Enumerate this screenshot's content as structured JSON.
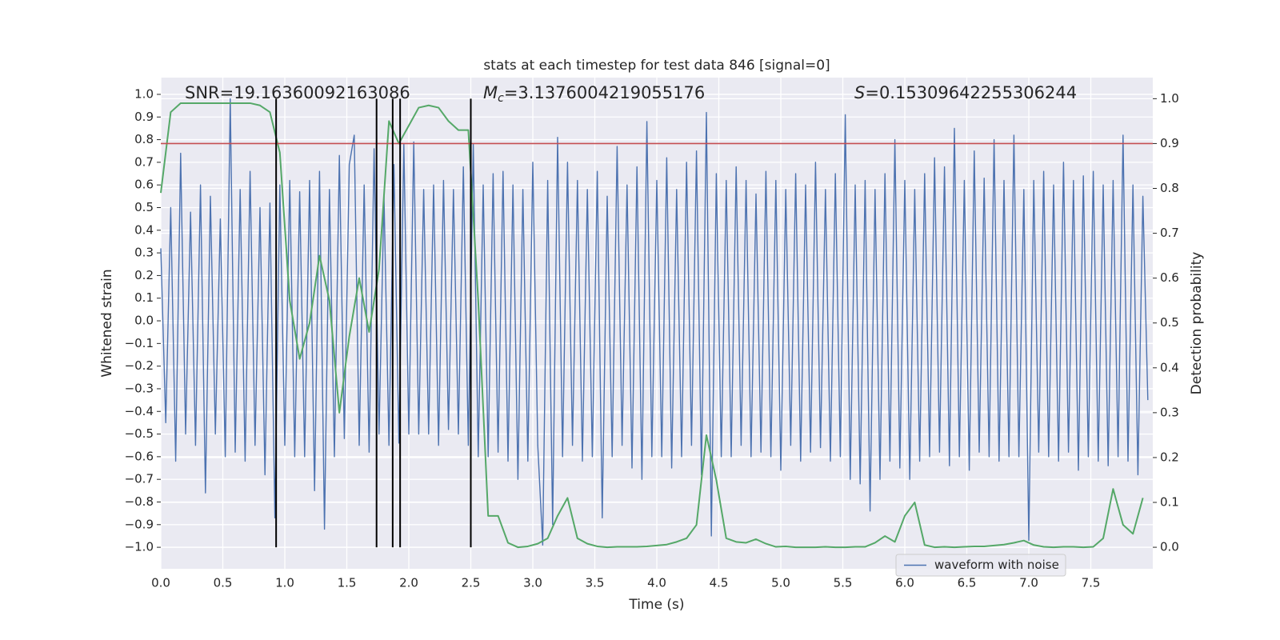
{
  "chart_data": {
    "type": "line",
    "title": "stats at each timestep for test data 846 [signal=0]",
    "xlabel": "Time (s)",
    "ylabel": "Whitened strain",
    "y2label": "Detection probability",
    "xlim": [
      0,
      8
    ],
    "ylim": [
      -1.095,
      1.074
    ],
    "y2lim": [
      -0.048,
      1.047
    ],
    "grid": true,
    "legend": "lower right",
    "xticks": [
      {
        "value": 0,
        "label": "0.0"
      },
      0.5,
      {
        "value": 1,
        "label": "1.0"
      },
      1.5,
      {
        "value": 2,
        "label": "2.0"
      },
      2.5,
      {
        "value": 3,
        "label": "3.0"
      },
      3.5,
      {
        "value": 4,
        "label": "4.0"
      },
      4.5,
      {
        "value": 5,
        "label": "5.0"
      },
      5.5,
      {
        "value": 6,
        "label": "6.0"
      },
      6.5,
      {
        "value": 7,
        "label": "7.0"
      },
      7.5
    ],
    "yticks": [
      {
        "value": -1,
        "label": "−1.0"
      },
      {
        "value": -0.9,
        "label": "−0.9"
      },
      {
        "value": -0.8,
        "label": "−0.8"
      },
      {
        "value": -0.7,
        "label": "−0.7"
      },
      {
        "value": -0.6,
        "label": "−0.6"
      },
      {
        "value": -0.5,
        "label": "−0.5"
      },
      {
        "value": -0.4,
        "label": "−0.4"
      },
      {
        "value": -0.3,
        "label": "−0.3"
      },
      {
        "value": -0.2,
        "label": "−0.2"
      },
      {
        "value": -0.1,
        "label": "−0.1"
      },
      {
        "value": 0,
        "label": "0.0"
      },
      0.1,
      0.2,
      0.3,
      0.4,
      0.5,
      0.6,
      0.7,
      0.8,
      0.9,
      {
        "value": 1,
        "label": "1.0"
      }
    ],
    "y2ticks": [
      {
        "value": 0,
        "label": "0.0"
      },
      0.1,
      0.2,
      0.3,
      0.4,
      0.5,
      0.6,
      0.7,
      0.8,
      0.9,
      {
        "value": 1,
        "label": "1.0"
      }
    ],
    "series": [
      {
        "name": "waveform with noise",
        "color": "#4c72b0",
        "x": [
          0,
          0.04,
          0.08,
          0.12,
          0.16,
          0.2,
          0.24,
          0.28,
          0.32,
          0.36,
          0.4,
          0.44,
          0.48,
          0.52,
          0.56,
          0.6,
          0.64,
          0.68,
          0.72,
          0.76,
          0.8,
          0.84,
          0.88,
          0.92,
          0.96,
          1,
          1.04,
          1.08,
          1.12,
          1.16,
          1.2,
          1.24,
          1.28,
          1.32,
          1.36,
          1.4,
          1.44,
          1.48,
          1.52,
          1.56,
          1.6,
          1.64,
          1.68,
          1.72,
          1.76,
          1.8,
          1.84,
          1.88,
          1.92,
          1.96,
          2,
          2.04,
          2.08,
          2.12,
          2.16,
          2.2,
          2.24,
          2.28,
          2.32,
          2.36,
          2.4,
          2.44,
          2.48,
          2.52,
          2.56,
          2.6,
          2.64,
          2.68,
          2.72,
          2.76,
          2.8,
          2.84,
          2.88,
          2.92,
          2.96,
          3,
          3.04,
          3.08,
          3.12,
          3.16,
          3.2,
          3.24,
          3.28,
          3.32,
          3.36,
          3.4,
          3.44,
          3.48,
          3.52,
          3.56,
          3.6,
          3.64,
          3.68,
          3.72,
          3.76,
          3.8,
          3.84,
          3.88,
          3.92,
          3.96,
          4,
          4.04,
          4.08,
          4.12,
          4.16,
          4.2,
          4.24,
          4.28,
          4.32,
          4.36,
          4.4,
          4.44,
          4.48,
          4.52,
          4.56,
          4.6,
          4.64,
          4.68,
          4.72,
          4.76,
          4.8,
          4.84,
          4.88,
          4.92,
          4.96,
          5,
          5.04,
          5.08,
          5.12,
          5.16,
          5.2,
          5.24,
          5.28,
          5.32,
          5.36,
          5.4,
          5.44,
          5.48,
          5.52,
          5.56,
          5.6,
          5.64,
          5.68,
          5.72,
          5.76,
          5.8,
          5.84,
          5.88,
          5.92,
          5.96,
          6,
          6.04,
          6.08,
          6.12,
          6.16,
          6.2,
          6.24,
          6.28,
          6.32,
          6.36,
          6.4,
          6.44,
          6.48,
          6.52,
          6.56,
          6.6,
          6.64,
          6.68,
          6.72,
          6.76,
          6.8,
          6.84,
          6.88,
          6.92,
          6.96,
          7,
          7.04,
          7.08,
          7.12,
          7.16,
          7.2,
          7.24,
          7.28,
          7.32,
          7.36,
          7.4,
          7.44,
          7.48,
          7.52,
          7.56,
          7.6,
          7.64,
          7.68,
          7.72,
          7.76,
          7.8,
          7.84,
          7.88,
          7.92,
          7.96
        ],
        "values": [
          0.32,
          -0.45,
          0.5,
          -0.62,
          0.74,
          -0.5,
          0.48,
          -0.55,
          0.6,
          -0.76,
          0.55,
          -0.5,
          0.45,
          -0.6,
          0.98,
          -0.58,
          0.58,
          -0.62,
          0.66,
          -0.55,
          0.5,
          -0.68,
          0.52,
          -0.87,
          0.6,
          -0.55,
          0.62,
          -0.6,
          0.57,
          -0.6,
          0.62,
          -0.75,
          0.66,
          -0.92,
          0.58,
          -0.6,
          0.73,
          -0.52,
          0.69,
          0.82,
          -0.55,
          0.6,
          -0.58,
          0.76,
          -0.5,
          0.55,
          -0.55,
          0.69,
          -0.54,
          0.78,
          -0.5,
          0.79,
          -0.5,
          0.58,
          -0.5,
          0.6,
          -0.55,
          0.62,
          -0.48,
          0.58,
          -0.5,
          0.68,
          -0.55,
          0.78,
          -0.6,
          0.6,
          -0.6,
          0.65,
          -0.58,
          0.66,
          -0.62,
          0.6,
          -0.7,
          0.58,
          -0.62,
          0.7,
          -0.55,
          -0.99,
          0.62,
          -0.9,
          0.81,
          -0.6,
          0.7,
          -0.55,
          0.62,
          -0.62,
          0.58,
          -0.6,
          0.66,
          -0.87,
          0.55,
          -0.6,
          0.77,
          -0.55,
          0.6,
          -0.65,
          0.68,
          -0.7,
          0.88,
          -0.6,
          0.62,
          -0.6,
          0.72,
          -0.65,
          0.58,
          -0.6,
          0.7,
          -0.55,
          0.75,
          -0.68,
          0.92,
          -0.95,
          0.65,
          -0.6,
          0.62,
          -0.6,
          0.68,
          -0.55,
          0.62,
          -0.6,
          0.56,
          -0.58,
          0.66,
          -0.6,
          0.62,
          -0.66,
          0.58,
          -0.55,
          0.65,
          -0.62,
          0.6,
          -0.58,
          0.7,
          -0.56,
          0.58,
          -0.62,
          0.65,
          -0.6,
          0.91,
          -0.7,
          0.6,
          -0.72,
          0.62,
          -0.84,
          0.58,
          -0.7,
          0.65,
          -0.62,
          0.8,
          -0.65,
          0.62,
          -0.7,
          0.58,
          -0.62,
          0.65,
          -0.6,
          0.72,
          -0.58,
          0.68,
          -0.64,
          0.85,
          -0.6,
          0.62,
          -0.66,
          0.75,
          -0.58,
          0.63,
          -0.6,
          0.8,
          -0.62,
          0.62,
          -0.6,
          0.82,
          -0.6,
          0.58,
          -0.97,
          0.62,
          -0.58,
          0.66,
          -0.6,
          0.6,
          -0.62,
          0.7,
          -0.58,
          0.62,
          -0.66,
          0.64,
          -0.6,
          0.66,
          -0.62,
          0.6,
          -0.64,
          0.62,
          -0.6,
          0.82,
          -0.62,
          0.6,
          -0.68,
          0.55,
          -0.35
        ]
      },
      {
        "color": "#55a868",
        "axis": "y2",
        "x": [
          0,
          0.08,
          0.16,
          0.24,
          0.32,
          0.4,
          0.48,
          0.56,
          0.64,
          0.72,
          0.8,
          0.88,
          0.96,
          1.04,
          1.12,
          1.2,
          1.28,
          1.36,
          1.44,
          1.52,
          1.6,
          1.68,
          1.76,
          1.84,
          1.92,
          2,
          2.08,
          2.16,
          2.24,
          2.32,
          2.4,
          2.48,
          2.56,
          2.64,
          2.72,
          2.8,
          2.88,
          2.96,
          3.04,
          3.12,
          3.2,
          3.28,
          3.36,
          3.44,
          3.52,
          3.6,
          3.68,
          3.76,
          3.84,
          3.92,
          4,
          4.08,
          4.16,
          4.24,
          4.32,
          4.4,
          4.48,
          4.56,
          4.64,
          4.72,
          4.8,
          4.88,
          4.96,
          5.04,
          5.12,
          5.2,
          5.28,
          5.36,
          5.44,
          5.52,
          5.6,
          5.68,
          5.76,
          5.84,
          5.92,
          6,
          6.08,
          6.16,
          6.24,
          6.32,
          6.4,
          6.48,
          6.56,
          6.64,
          6.72,
          6.8,
          6.88,
          6.96,
          7.04,
          7.12,
          7.2,
          7.28,
          7.36,
          7.44,
          7.52,
          7.6,
          7.68,
          7.76,
          7.84,
          7.92
        ],
        "values": [
          0.79,
          0.97,
          0.99,
          0.99,
          0.99,
          0.99,
          0.99,
          0.99,
          0.99,
          0.99,
          0.985,
          0.97,
          0.88,
          0.55,
          0.42,
          0.5,
          0.65,
          0.55,
          0.3,
          0.47,
          0.6,
          0.48,
          0.62,
          0.95,
          0.9,
          0.94,
          0.98,
          0.985,
          0.98,
          0.95,
          0.93,
          0.93,
          0.55,
          0.07,
          0.07,
          0.01,
          0,
          0.002,
          0.008,
          0.02,
          0.07,
          0.11,
          0.02,
          0.008,
          0.002,
          0,
          0.001,
          0.001,
          0.001,
          0.002,
          0.004,
          0.006,
          0.012,
          0.02,
          0.05,
          0.25,
          0.15,
          0.02,
          0.012,
          0.01,
          0.018,
          0.008,
          0.001,
          0.002,
          0,
          0,
          0,
          0.001,
          0,
          0,
          0.001,
          0.001,
          0.01,
          0.025,
          0.012,
          0.07,
          0.1,
          0.005,
          0,
          0.001,
          0,
          0.001,
          0.002,
          0.002,
          0.004,
          0.006,
          0.01,
          0.015,
          0.005,
          0.001,
          0,
          0.001,
          0.001,
          0,
          0.001,
          0.02,
          0.13,
          0.05,
          0.03,
          0.11
        ]
      }
    ],
    "hlines": [
      {
        "axis": "y2",
        "value": 0.9,
        "color": "#c44e52"
      }
    ],
    "vlines": {
      "x": [
        0.93,
        1.74,
        1.87,
        1.93,
        2.5
      ],
      "y2": [
        0,
        1
      ],
      "color": "#000000"
    },
    "annotations": [
      {
        "text": "SNR=19.16360092163086"
      },
      {
        "symbol": "M",
        "subscript": "c",
        "text": "=3.1376004219055176"
      },
      {
        "symbol": "S",
        "text": "=0.15309642255306244"
      }
    ]
  }
}
